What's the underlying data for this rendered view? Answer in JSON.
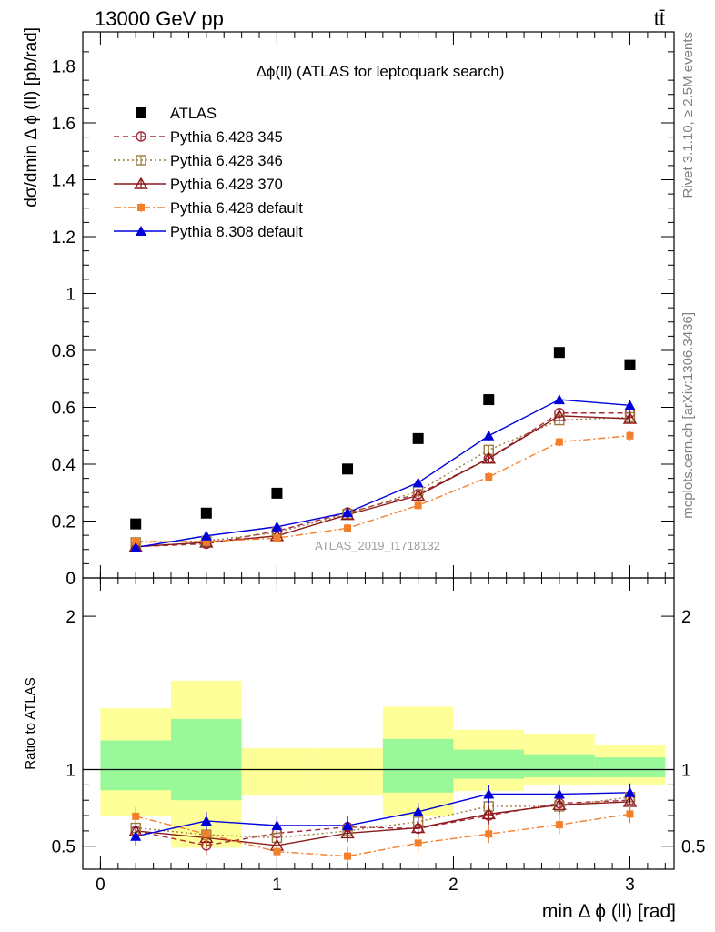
{
  "header": {
    "left": "13000 GeV pp",
    "right": "tt̄"
  },
  "side_text": {
    "rivet": "Rivet 3.1.10, ≥ 2.5M events",
    "mcplots": "mcplots.cern.ch [arXiv:1306.3436]"
  },
  "watermark": "ATLAS_2019_I1718132",
  "chart_data": [
    {
      "type": "scatter",
      "panel": "main",
      "title": "Δϕ(ll) (ATLAS for leptoquark search)",
      "ylabel": "dσ/dmin Δ ϕ (ll) [pb/rad]",
      "xlabel": "",
      "xlim": [
        -0.1,
        3.25
      ],
      "ylim": [
        0,
        1.92
      ],
      "yticks": [
        0,
        0.2,
        0.4,
        0.6,
        0.8,
        1,
        1.2,
        1.4,
        1.6,
        1.8
      ],
      "ytick_labels": [
        "0",
        "0.2",
        "0.4",
        "0.6",
        "0.8",
        "1",
        "1.2",
        "1.4",
        "1.6",
        "1.8"
      ],
      "x": [
        0.2,
        0.6,
        1.0,
        1.4,
        1.8,
        2.2,
        2.6,
        3.0
      ],
      "legend_position": "top-left",
      "series": [
        {
          "name": "ATLAS",
          "color": "#000000",
          "marker": "square-filled",
          "line": "none",
          "values": [
            0.19,
            0.228,
            0.298,
            0.383,
            0.49,
            0.627,
            0.793,
            0.75
          ]
        },
        {
          "name": "Pythia 6.428 345",
          "color": "#a52a3a",
          "marker": "circle-open",
          "line": "dashed",
          "values": [
            0.11,
            0.12,
            0.165,
            0.23,
            0.295,
            0.42,
            0.58,
            0.58
          ]
        },
        {
          "name": "Pythia 6.428 346",
          "color": "#9c7a3c",
          "marker": "square-open",
          "line": "dotted",
          "values": [
            0.125,
            0.13,
            0.16,
            0.225,
            0.305,
            0.45,
            0.555,
            0.565
          ]
        },
        {
          "name": "Pythia 6.428 370",
          "color": "#8b1a1a",
          "marker": "triangle-open",
          "line": "solid",
          "values": [
            0.11,
            0.125,
            0.148,
            0.222,
            0.29,
            0.42,
            0.57,
            0.56
          ]
        },
        {
          "name": "Pythia 6.428 default",
          "color": "#f47f2a",
          "marker": "square-filled-small",
          "line": "dashdot",
          "values": [
            0.128,
            0.128,
            0.14,
            0.175,
            0.255,
            0.355,
            0.478,
            0.5
          ]
        },
        {
          "name": "Pythia 8.308 default",
          "color": "#0000dd",
          "marker": "triangle-filled",
          "line": "solid",
          "values": [
            0.107,
            0.148,
            0.18,
            0.23,
            0.335,
            0.5,
            0.627,
            0.607
          ]
        }
      ]
    },
    {
      "type": "scatter",
      "panel": "ratio",
      "ylabel": "Ratio to ATLAS",
      "xlabel": "min Δ ϕ (ll) [rad]",
      "xlim": [
        -0.1,
        3.25
      ],
      "ylim": [
        0.35,
        2.25
      ],
      "yticks": [
        0.5,
        1,
        2
      ],
      "ytick_labels": [
        "0.5",
        "1",
        "2"
      ],
      "xticks": [
        0,
        1,
        2,
        3
      ],
      "xtick_labels": [
        "0",
        "1",
        "2",
        "3"
      ],
      "bands": {
        "bin_edges": [
          0.0,
          0.4,
          0.8,
          1.2,
          1.6,
          2.0,
          2.4,
          2.8,
          3.2
        ],
        "green": [
          [
            0.865,
            1.19
          ],
          [
            0.8,
            1.33
          ],
          [
            1.1,
            1.1
          ],
          [
            1.06,
            1.06
          ],
          [
            0.85,
            1.2
          ],
          [
            0.94,
            1.13
          ],
          [
            0.95,
            1.1
          ],
          [
            0.95,
            1.08
          ]
        ],
        "yellow": [
          [
            0.7,
            1.4
          ],
          [
            0.49,
            1.58
          ],
          [
            0.83,
            1.14
          ],
          [
            0.83,
            1.14
          ],
          [
            0.7,
            1.41
          ],
          [
            0.86,
            1.26
          ],
          [
            0.9,
            1.23
          ],
          [
            0.9,
            1.16
          ]
        ],
        "green_color": "#99f999",
        "yellow_color": "#ffff99"
      },
      "x": [
        0.2,
        0.6,
        1.0,
        1.4,
        1.8,
        2.2,
        2.6,
        3.0
      ],
      "series": [
        {
          "name": "Pythia 6.428 345",
          "color": "#a52a3a",
          "values": [
            0.6,
            0.505,
            0.585,
            0.625,
            0.615,
            0.7,
            0.78,
            0.8
          ]
        },
        {
          "name": "Pythia 6.428 346",
          "color": "#9c7a3c",
          "values": [
            0.62,
            0.575,
            0.555,
            0.6,
            0.66,
            0.76,
            0.76,
            0.82
          ]
        },
        {
          "name": "Pythia 6.428 370",
          "color": "#8b1a1a",
          "values": [
            0.6,
            0.555,
            0.505,
            0.585,
            0.62,
            0.71,
            0.77,
            0.79
          ]
        },
        {
          "name": "Pythia 6.428 default",
          "color": "#f47f2a",
          "values": [
            0.695,
            0.58,
            0.465,
            0.435,
            0.52,
            0.58,
            0.64,
            0.71
          ]
        },
        {
          "name": "Pythia 8.308 default",
          "color": "#0000dd",
          "values": [
            0.565,
            0.665,
            0.635,
            0.635,
            0.725,
            0.84,
            0.84,
            0.85
          ]
        }
      ]
    }
  ]
}
